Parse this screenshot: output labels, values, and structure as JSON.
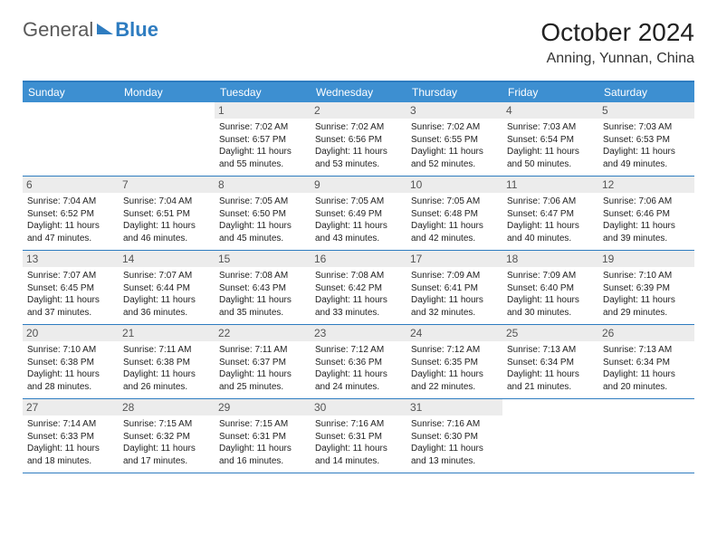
{
  "logo": {
    "part1": "General",
    "part2": "Blue"
  },
  "title": "October 2024",
  "location": "Anning, Yunnan, China",
  "colors": {
    "header_bg": "#3d8fd1",
    "accent": "#2e7cc0",
    "daynum_bg": "#ececec",
    "text": "#222222",
    "muted": "#555555"
  },
  "typography": {
    "title_fontsize": 28,
    "location_fontsize": 16,
    "dayhead_fontsize": 12,
    "cell_fontsize": 10
  },
  "day_names": [
    "Sunday",
    "Monday",
    "Tuesday",
    "Wednesday",
    "Thursday",
    "Friday",
    "Saturday"
  ],
  "weeks": [
    [
      null,
      null,
      {
        "d": "1",
        "sr": "7:02 AM",
        "ss": "6:57 PM",
        "dl": "11 hours and 55 minutes."
      },
      {
        "d": "2",
        "sr": "7:02 AM",
        "ss": "6:56 PM",
        "dl": "11 hours and 53 minutes."
      },
      {
        "d": "3",
        "sr": "7:02 AM",
        "ss": "6:55 PM",
        "dl": "11 hours and 52 minutes."
      },
      {
        "d": "4",
        "sr": "7:03 AM",
        "ss": "6:54 PM",
        "dl": "11 hours and 50 minutes."
      },
      {
        "d": "5",
        "sr": "7:03 AM",
        "ss": "6:53 PM",
        "dl": "11 hours and 49 minutes."
      }
    ],
    [
      {
        "d": "6",
        "sr": "7:04 AM",
        "ss": "6:52 PM",
        "dl": "11 hours and 47 minutes."
      },
      {
        "d": "7",
        "sr": "7:04 AM",
        "ss": "6:51 PM",
        "dl": "11 hours and 46 minutes."
      },
      {
        "d": "8",
        "sr": "7:05 AM",
        "ss": "6:50 PM",
        "dl": "11 hours and 45 minutes."
      },
      {
        "d": "9",
        "sr": "7:05 AM",
        "ss": "6:49 PM",
        "dl": "11 hours and 43 minutes."
      },
      {
        "d": "10",
        "sr": "7:05 AM",
        "ss": "6:48 PM",
        "dl": "11 hours and 42 minutes."
      },
      {
        "d": "11",
        "sr": "7:06 AM",
        "ss": "6:47 PM",
        "dl": "11 hours and 40 minutes."
      },
      {
        "d": "12",
        "sr": "7:06 AM",
        "ss": "6:46 PM",
        "dl": "11 hours and 39 minutes."
      }
    ],
    [
      {
        "d": "13",
        "sr": "7:07 AM",
        "ss": "6:45 PM",
        "dl": "11 hours and 37 minutes."
      },
      {
        "d": "14",
        "sr": "7:07 AM",
        "ss": "6:44 PM",
        "dl": "11 hours and 36 minutes."
      },
      {
        "d": "15",
        "sr": "7:08 AM",
        "ss": "6:43 PM",
        "dl": "11 hours and 35 minutes."
      },
      {
        "d": "16",
        "sr": "7:08 AM",
        "ss": "6:42 PM",
        "dl": "11 hours and 33 minutes."
      },
      {
        "d": "17",
        "sr": "7:09 AM",
        "ss": "6:41 PM",
        "dl": "11 hours and 32 minutes."
      },
      {
        "d": "18",
        "sr": "7:09 AM",
        "ss": "6:40 PM",
        "dl": "11 hours and 30 minutes."
      },
      {
        "d": "19",
        "sr": "7:10 AM",
        "ss": "6:39 PM",
        "dl": "11 hours and 29 minutes."
      }
    ],
    [
      {
        "d": "20",
        "sr": "7:10 AM",
        "ss": "6:38 PM",
        "dl": "11 hours and 28 minutes."
      },
      {
        "d": "21",
        "sr": "7:11 AM",
        "ss": "6:38 PM",
        "dl": "11 hours and 26 minutes."
      },
      {
        "d": "22",
        "sr": "7:11 AM",
        "ss": "6:37 PM",
        "dl": "11 hours and 25 minutes."
      },
      {
        "d": "23",
        "sr": "7:12 AM",
        "ss": "6:36 PM",
        "dl": "11 hours and 24 minutes."
      },
      {
        "d": "24",
        "sr": "7:12 AM",
        "ss": "6:35 PM",
        "dl": "11 hours and 22 minutes."
      },
      {
        "d": "25",
        "sr": "7:13 AM",
        "ss": "6:34 PM",
        "dl": "11 hours and 21 minutes."
      },
      {
        "d": "26",
        "sr": "7:13 AM",
        "ss": "6:34 PM",
        "dl": "11 hours and 20 minutes."
      }
    ],
    [
      {
        "d": "27",
        "sr": "7:14 AM",
        "ss": "6:33 PM",
        "dl": "11 hours and 18 minutes."
      },
      {
        "d": "28",
        "sr": "7:15 AM",
        "ss": "6:32 PM",
        "dl": "11 hours and 17 minutes."
      },
      {
        "d": "29",
        "sr": "7:15 AM",
        "ss": "6:31 PM",
        "dl": "11 hours and 16 minutes."
      },
      {
        "d": "30",
        "sr": "7:16 AM",
        "ss": "6:31 PM",
        "dl": "11 hours and 14 minutes."
      },
      {
        "d": "31",
        "sr": "7:16 AM",
        "ss": "6:30 PM",
        "dl": "11 hours and 13 minutes."
      },
      null,
      null
    ]
  ],
  "labels": {
    "sunrise": "Sunrise:",
    "sunset": "Sunset:",
    "daylight": "Daylight:"
  }
}
